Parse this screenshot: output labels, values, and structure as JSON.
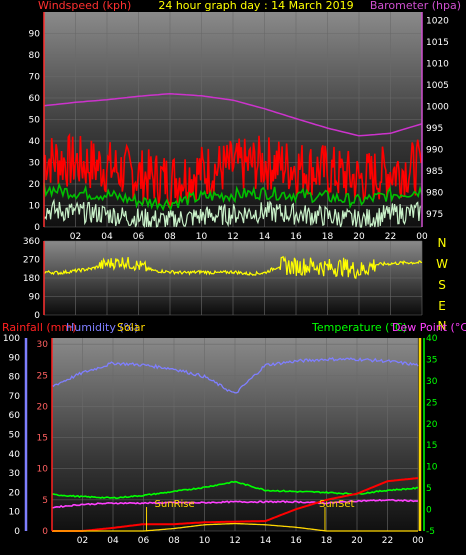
{
  "header": {
    "title": "24 hour graph day : 14 March 2019",
    "left_label": "Windspeed (kph)",
    "right_label": "Barometer (hpa)"
  },
  "colors": {
    "background": "#000000",
    "title": "#ffff00",
    "wind": "#ff0000",
    "avg_wind": "#00c000",
    "lull": "#c8f0c8",
    "barometer": "#cc33cc",
    "direction": "#ffff00",
    "axis_left_top": "#ff3030",
    "axis_right_top": "#d050d0",
    "rain_axis": "#ff2020",
    "humidity": "#7f7fff",
    "temperature": "#00ff00",
    "dew_point": "#ff40ff",
    "solar": "#ffd700",
    "tick_text": "#ffffff"
  },
  "x_ticks": [
    "02",
    "04",
    "06",
    "08",
    "10",
    "12",
    "14",
    "16",
    "18",
    "20",
    "22",
    "00"
  ],
  "direction_letters": [
    "N",
    "W",
    "S",
    "E",
    "N"
  ],
  "bottom_header": {
    "rainfall_label": "Rainfall (mm)",
    "humidity_label": "Humidity (%)",
    "solar_label": "Solar",
    "temperature_label": "Temperature (°C)",
    "dewpoint_label": "Dew Point (°C)",
    "sunrise_label": "SunRise",
    "sunset_label": "SunSet"
  },
  "chart_data": [
    {
      "type": "line",
      "name": "wind-barometer",
      "x": [
        0,
        2,
        4,
        6,
        8,
        10,
        12,
        14,
        16,
        18,
        20,
        22,
        24
      ],
      "y_left_ticks": [
        0,
        10,
        20,
        30,
        40,
        50,
        60,
        70,
        80,
        90
      ],
      "y_right_ticks": [
        975,
        980,
        985,
        990,
        995,
        1000,
        1005,
        1010,
        1015,
        1020
      ],
      "ylim_left": [
        0,
        100
      ],
      "ylim_right": [
        972,
        1022
      ],
      "series": [
        {
          "key": "gust",
          "axis": "left",
          "values": [
            32,
            30,
            28,
            24,
            22,
            26,
            28,
            30,
            28,
            26,
            22,
            26,
            28
          ]
        },
        {
          "key": "avg",
          "axis": "left",
          "values": [
            18,
            16,
            15,
            12,
            11,
            14,
            15,
            16,
            15,
            14,
            12,
            15,
            17
          ]
        },
        {
          "key": "lull",
          "axis": "left",
          "values": [
            8,
            7,
            6,
            4,
            3,
            5,
            6,
            7,
            6,
            5,
            3,
            6,
            7
          ]
        },
        {
          "key": "barometer",
          "axis": "right",
          "values": [
            1000.2,
            1001.0,
            1001.6,
            1002.4,
            1003.0,
            1002.5,
            1001.5,
            999.5,
            997.2,
            995.0,
            993.2,
            993.8,
            996.0
          ]
        }
      ]
    },
    {
      "type": "line",
      "name": "wind-direction",
      "x": [
        0,
        1,
        2,
        3,
        4,
        5,
        6,
        7,
        8,
        9,
        10,
        11,
        12,
        13,
        14,
        15,
        16,
        17,
        18,
        19,
        20,
        21,
        22,
        23,
        24
      ],
      "y_ticks": [
        0,
        90,
        180,
        270,
        360
      ],
      "ylim": [
        0,
        360
      ],
      "values": [
        210,
        205,
        215,
        225,
        250,
        260,
        240,
        215,
        210,
        205,
        210,
        205,
        210,
        200,
        205,
        240,
        235,
        240,
        230,
        235,
        215,
        245,
        250,
        255,
        255
      ]
    },
    {
      "type": "line",
      "name": "rain-humidity-temperature",
      "x": [
        0,
        2,
        4,
        6,
        8,
        10,
        12,
        14,
        16,
        18,
        20,
        22,
        24
      ],
      "y_rain_ticks": [
        0,
        5,
        10,
        15,
        20,
        25,
        30
      ],
      "y_humidity_ticks": [
        0,
        10,
        20,
        30,
        40,
        50,
        60,
        70,
        80,
        90,
        100
      ],
      "y_temp_ticks": [
        -5,
        0,
        5,
        10,
        15,
        20,
        25,
        30,
        35,
        40
      ],
      "ylim_rain": [
        0,
        31
      ],
      "ylim_humidity": [
        0,
        100
      ],
      "ylim_temp": [
        -5,
        40
      ],
      "series": [
        {
          "key": "humidity",
          "axis": "humidity",
          "values": [
            75,
            82,
            87,
            86,
            84,
            80,
            71,
            86,
            88,
            89,
            89,
            88,
            86
          ]
        },
        {
          "key": "temperature",
          "axis": "temp",
          "values": [
            3.5,
            3.0,
            2.7,
            3.3,
            4.2,
            5.2,
            6.5,
            4.5,
            4.2,
            4.0,
            3.6,
            4.5,
            5.0
          ]
        },
        {
          "key": "dew_point",
          "axis": "temp",
          "values": [
            0.5,
            1.2,
            1.5,
            1.5,
            1.6,
            1.6,
            1.8,
            1.8,
            1.8,
            1.5,
            2.0,
            2.2,
            2.0
          ]
        },
        {
          "key": "rainfall",
          "axis": "rain",
          "values": [
            0,
            0,
            0.5,
            1.1,
            1.1,
            1.4,
            1.5,
            1.6,
            3.5,
            5.0,
            6.0,
            8.0,
            8.5
          ]
        },
        {
          "key": "solar",
          "axis": "rain",
          "values": [
            0,
            0,
            0,
            0,
            0.4,
            1.0,
            1.2,
            1.0,
            0.6,
            0,
            0,
            0,
            0
          ]
        }
      ],
      "sunrise_hour": 6.2,
      "sunset_hour": 17.9
    }
  ]
}
